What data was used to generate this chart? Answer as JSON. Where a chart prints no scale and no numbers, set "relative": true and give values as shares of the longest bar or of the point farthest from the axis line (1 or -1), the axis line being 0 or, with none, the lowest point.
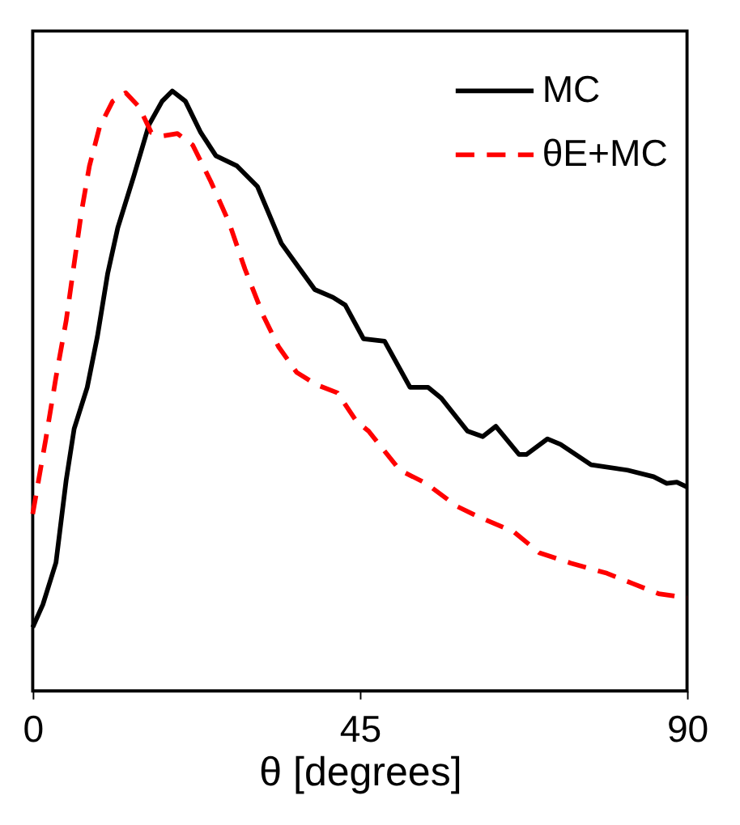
{
  "chart_data": {
    "type": "line",
    "xlabel": "θ [degrees]",
    "xlim": [
      0,
      90
    ],
    "xticks": [
      0,
      45,
      90
    ],
    "relative": true,
    "grid": false,
    "legend": "top right",
    "series": [
      {
        "name": "MC",
        "color": "#000000",
        "line_style": "solid",
        "x": [
          0,
          1.4,
          3.2,
          4.6,
          5.7,
          7.5,
          8.9,
          10.3,
          11.7,
          13.9,
          16.0,
          17.8,
          19.2,
          21.0,
          23.1,
          25.2,
          28.1,
          30.9,
          32.4,
          34.2,
          37.0,
          38.8,
          41.3,
          43.0,
          45.5,
          48.4,
          51.9,
          54.4,
          56.2,
          59.8,
          61.9,
          63.7,
          66.9,
          67.9,
          70.8,
          72.6,
          76.8,
          81.8,
          85.4,
          87.2,
          88.6,
          90
        ],
        "values": [
          0.106,
          0.144,
          0.214,
          0.351,
          0.437,
          0.506,
          0.591,
          0.695,
          0.772,
          0.858,
          0.944,
          0.983,
          1,
          0.983,
          0.931,
          0.892,
          0.875,
          0.841,
          0.798,
          0.746,
          0.699,
          0.669,
          0.656,
          0.643,
          0.587,
          0.583,
          0.506,
          0.506,
          0.488,
          0.433,
          0.424,
          0.441,
          0.394,
          0.394,
          0.42,
          0.411,
          0.377,
          0.368,
          0.357,
          0.346,
          0.348,
          0.34
        ]
      },
      {
        "name": "θE+MC",
        "color": "#ff0000",
        "line_style": "dashed",
        "x": [
          0,
          1.8,
          3.2,
          4.6,
          5.7,
          6.7,
          7.8,
          9.2,
          11.0,
          12.8,
          14.6,
          16.3,
          17.8,
          19.9,
          22.0,
          24.5,
          27.0,
          29.2,
          31.7,
          33.8,
          36.3,
          39.1,
          41.9,
          44.5,
          46.2,
          50.5,
          54.1,
          58.3,
          61.2,
          66.2,
          69.7,
          74.0,
          79.0,
          82.5,
          86.1,
          90
        ],
        "values": [
          0.295,
          0.42,
          0.523,
          0.617,
          0.712,
          0.798,
          0.875,
          0.94,
          0.983,
          0.997,
          0.974,
          0.931,
          0.925,
          0.929,
          0.91,
          0.849,
          0.781,
          0.703,
          0.626,
          0.574,
          0.531,
          0.51,
          0.497,
          0.45,
          0.433,
          0.368,
          0.346,
          0.308,
          0.291,
          0.265,
          0.23,
          0.213,
          0.196,
          0.179,
          0.162,
          0.155
        ]
      }
    ]
  }
}
